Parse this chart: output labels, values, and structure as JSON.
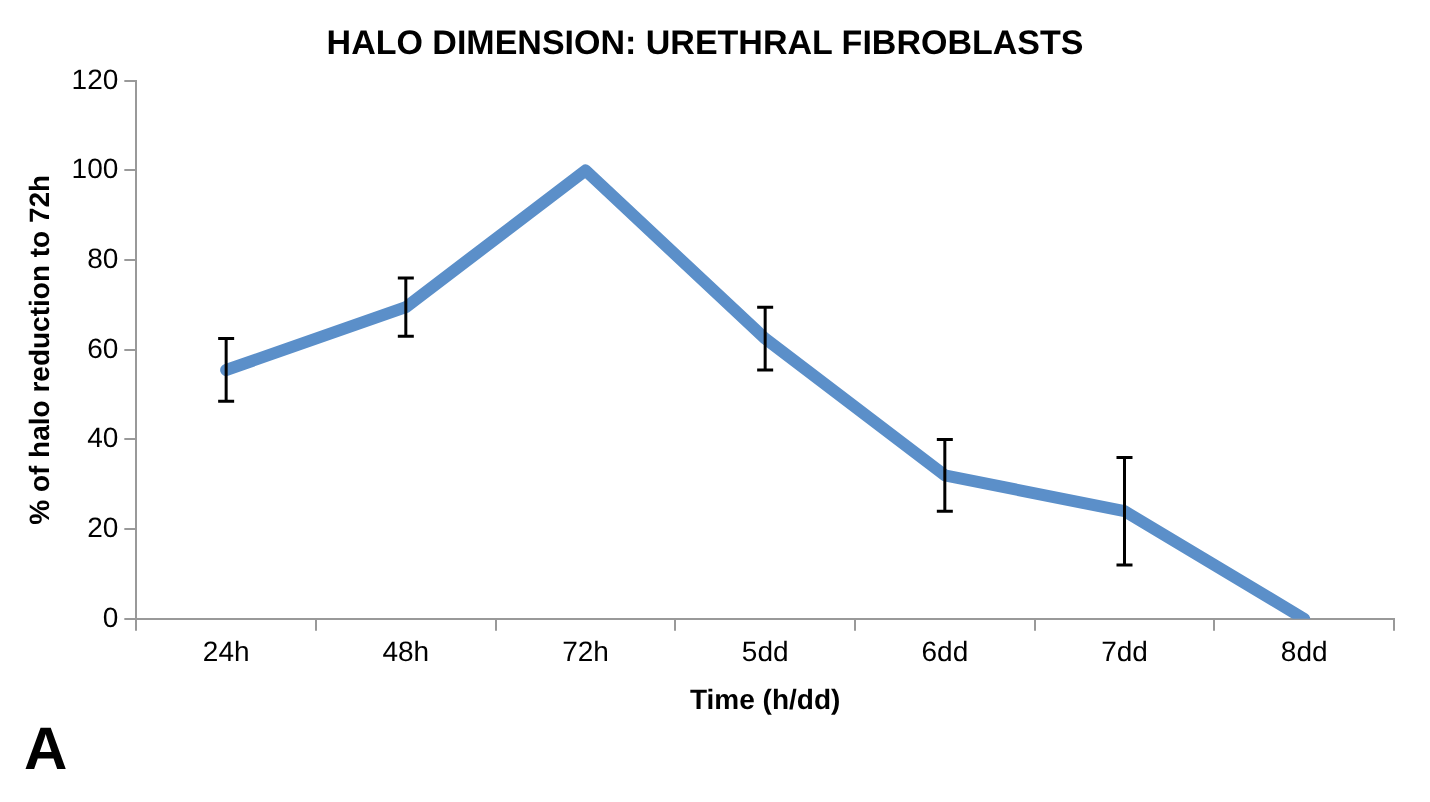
{
  "chart_data": {
    "type": "line",
    "title": "HALO DIMENSION: URETHRAL FIBROBLASTS",
    "xlabel": "Time (h/dd)",
    "ylabel": "% of halo reduction to 72h",
    "categories": [
      "24h",
      "48h",
      "72h",
      "5dd",
      "6dd",
      "7dd",
      "8dd"
    ],
    "series": [
      {
        "color": "#5b8fc9",
        "values": [
          55.5,
          69.5,
          100,
          62.5,
          32,
          24,
          0
        ],
        "errors": [
          7,
          6.5,
          null,
          7,
          8,
          12,
          null
        ]
      }
    ],
    "ylim": [
      0,
      120
    ],
    "yticks": [
      0,
      20,
      40,
      60,
      80,
      100,
      120
    ],
    "grid": false,
    "legend": false,
    "marker": "none",
    "line_style": "solid",
    "annotations": [
      "A"
    ]
  }
}
